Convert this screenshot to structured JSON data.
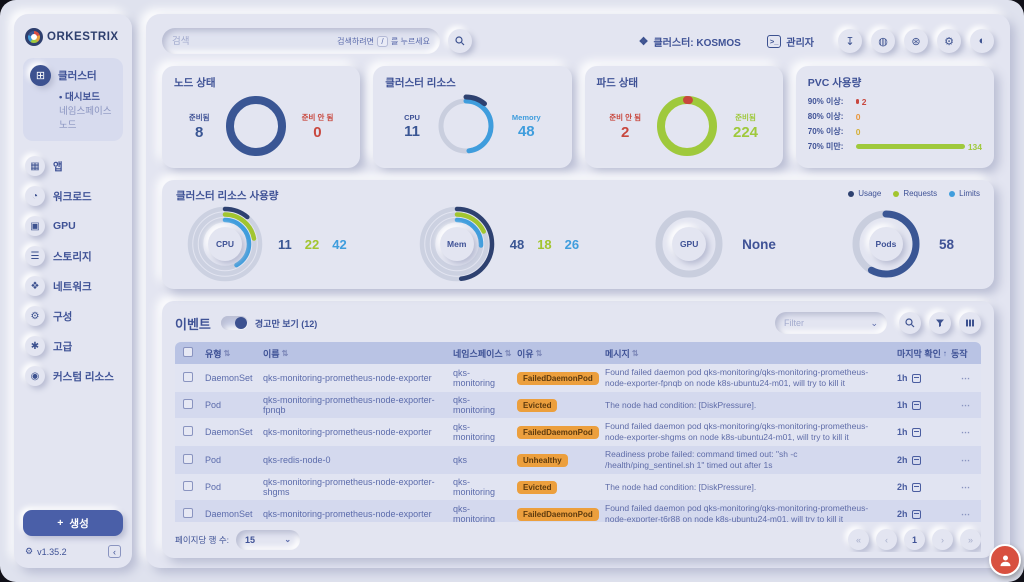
{
  "colors": {
    "primary": "#3f5296",
    "navy": "#2e4170",
    "blue": "#3f9ddd",
    "green": "#a2c52f",
    "orange": "#ec9f3d",
    "red": "#c8473e",
    "yellow": "#d4af37"
  },
  "icons": {
    "version_gear": "⚙",
    "collapse": "‹",
    "terminal": ">_",
    "cluster_chip": "❖",
    "plus": "+",
    "dots": "⋯",
    "chevron_down": "⌄",
    "sort_both": "⇅",
    "sort_asc": "↑"
  },
  "sidebar": {
    "logo": "ORKESTRIX",
    "cluster_group": {
      "label": "클러스터",
      "glyph": "⊞",
      "children": [
        {
          "label": "대시보드",
          "active": true
        },
        {
          "label": "네임스페이스",
          "active": false
        },
        {
          "label": "노드",
          "active": false
        }
      ]
    },
    "items": [
      {
        "id": "apps",
        "label": "앱",
        "glyph": "▦"
      },
      {
        "id": "workloads",
        "label": "워크로드",
        "glyph": "◔"
      },
      {
        "id": "gpu",
        "label": "GPU",
        "glyph": "▣"
      },
      {
        "id": "storage",
        "label": "스토리지",
        "glyph": "☰"
      },
      {
        "id": "network",
        "label": "네트워크",
        "glyph": "❖"
      },
      {
        "id": "config",
        "label": "구성",
        "glyph": "⚙"
      },
      {
        "id": "advanced",
        "label": "고급",
        "glyph": "✱"
      },
      {
        "id": "custom-resources",
        "label": "커스텀 리소스",
        "glyph": "◉"
      }
    ],
    "create_label": "생성",
    "version": "v1.35.2"
  },
  "topbar": {
    "search_placeholder": "검색",
    "search_hint_prefix": "검색하려면",
    "search_hint_key": "/",
    "search_hint_suffix": "를 누르세요",
    "cluster_label": "클러스터: KOSMOS",
    "admin_label": "관리자",
    "buttons": [
      {
        "name": "download",
        "glyph": "↧"
      },
      {
        "name": "help",
        "glyph": "◍"
      },
      {
        "name": "language",
        "glyph": "⊛"
      },
      {
        "name": "settings",
        "glyph": "⚙"
      },
      {
        "name": "theme",
        "glyph": "◐"
      }
    ]
  },
  "cards": {
    "node_status": {
      "title": "노드 상태",
      "ready_label": "준비됨",
      "ready_value": "8",
      "not_ready_label": "준비 안 됨",
      "not_ready_value": "0"
    },
    "cluster_resources": {
      "title": "클러스터 리소스",
      "cpu_label": "CPU",
      "cpu_value": "11",
      "memory_label": "Memory",
      "memory_value": "48"
    },
    "pod_status": {
      "title": "파드 상태",
      "not_ready_label": "준비 안 됨",
      "not_ready_value": "2",
      "ready_label": "준비됨",
      "ready_value": "224"
    },
    "pvc": {
      "title": "PVC 사용량",
      "rows": [
        {
          "label": "90% 이상:",
          "value": "2",
          "color": "#c8473e",
          "bar_pct": 2
        },
        {
          "label": "80% 이상:",
          "value": "0",
          "color": "#e8963c",
          "bar_pct": 0
        },
        {
          "label": "70% 이상:",
          "value": "0",
          "color": "#d4af37",
          "bar_pct": 0
        },
        {
          "label": "70% 미만:",
          "value": "134",
          "color": "#9fc93c",
          "bar_pct": 100
        }
      ]
    }
  },
  "usage": {
    "title": "클러스터 리소스 사용량",
    "legend": [
      {
        "label": "Usage",
        "color": "#2e4170"
      },
      {
        "label": "Requests",
        "color": "#a2c52f"
      },
      {
        "label": "Limits",
        "color": "#3f9ddd"
      }
    ],
    "cpu": {
      "label": "CPU",
      "usage": "11",
      "requests": "22",
      "limits": "42"
    },
    "mem": {
      "label": "Mem",
      "usage": "48",
      "requests": "18",
      "limits": "26"
    },
    "gpu": {
      "label": "GPU",
      "value": "None"
    },
    "pods": {
      "label": "Pods",
      "value": "58"
    }
  },
  "gauges": {
    "node": {
      "size": 66,
      "arcs": [
        {
          "r": 26,
          "w": 8,
          "color": "#3a5694",
          "pct": 100
        }
      ]
    },
    "cluster": {
      "size": 66,
      "arcs": [
        {
          "r": 25,
          "w": 5,
          "color": "#c9cede",
          "pct": 100
        },
        {
          "r": 25,
          "w": 5,
          "color": "#3f9ddd",
          "pct": 48
        },
        {
          "r": 29,
          "w": 5,
          "color": "#2e4170",
          "pct": 11
        }
      ]
    },
    "pod": {
      "size": 66,
      "arcs": [
        {
          "r": 26,
          "w": 8,
          "color": "#9fc93c",
          "pct": 100
        },
        {
          "r": 26,
          "w": 8,
          "color": "#c8473e",
          "pct": 1.2
        }
      ]
    },
    "cpu": {
      "size": 78,
      "arcs": [
        {
          "r": 35,
          "w": 4.5,
          "color": "#ccd1e1",
          "pct": 100
        },
        {
          "r": 35,
          "w": 4.5,
          "color": "#2e4170",
          "pct": 11
        },
        {
          "r": 29.5,
          "w": 4.5,
          "color": "#ccd1e1",
          "pct": 100
        },
        {
          "r": 29.5,
          "w": 4.5,
          "color": "#a2c52f",
          "pct": 22
        },
        {
          "r": 24,
          "w": 4.5,
          "color": "#ccd1e1",
          "pct": 100
        },
        {
          "r": 24,
          "w": 4.5,
          "color": "#3f9ddd",
          "pct": 42
        }
      ]
    },
    "mem": {
      "size": 78,
      "arcs": [
        {
          "r": 35,
          "w": 4.5,
          "color": "#ccd1e1",
          "pct": 100
        },
        {
          "r": 35,
          "w": 4.5,
          "color": "#2e4170",
          "pct": 48
        },
        {
          "r": 29.5,
          "w": 4.5,
          "color": "#ccd1e1",
          "pct": 100
        },
        {
          "r": 29.5,
          "w": 4.5,
          "color": "#a2c52f",
          "pct": 18
        },
        {
          "r": 24,
          "w": 4.5,
          "color": "#ccd1e1",
          "pct": 100
        },
        {
          "r": 24,
          "w": 4.5,
          "color": "#3f9ddd",
          "pct": 26
        }
      ]
    },
    "gpu": {
      "size": 78,
      "arcs": [
        {
          "r": 30,
          "w": 7,
          "color": "#c9cede",
          "pct": 100
        }
      ]
    },
    "pods": {
      "size": 78,
      "arcs": [
        {
          "r": 30,
          "w": 7,
          "color": "#c9cede",
          "pct": 100
        },
        {
          "r": 30,
          "w": 7,
          "color": "#3a5694",
          "pct": 58
        }
      ]
    }
  },
  "events": {
    "title": "이벤트",
    "toggle_label": "경고만 보기 (12)",
    "filter_placeholder": "Filter",
    "columns": [
      {
        "id": "type",
        "label": "유형",
        "sort": "both"
      },
      {
        "id": "name",
        "label": "이름",
        "sort": "both"
      },
      {
        "id": "namespace",
        "label": "네임스페이스",
        "sort": "both"
      },
      {
        "id": "reason",
        "label": "이유",
        "sort": "both"
      },
      {
        "id": "message",
        "label": "메시지",
        "sort": "both"
      },
      {
        "id": "last-seen",
        "label": "마지막 확인",
        "sort": "asc"
      },
      {
        "id": "actions",
        "label": "동작",
        "sort": null
      }
    ],
    "rows": [
      {
        "type": "DaemonSet",
        "name": "qks-monitoring-prometheus-node-exporter",
        "namespace": "qks-monitoring",
        "reason": "FailedDaemonPod",
        "message": "Found failed daemon pod qks-monitoring/qks-monitoring-prometheus-node-exporter-fpnqb on node k8s-ubuntu24-m01, will try to kill it",
        "last_seen": "1h"
      },
      {
        "type": "Pod",
        "name": "qks-monitoring-prometheus-node-exporter-fpnqb",
        "namespace": "qks-monitoring",
        "reason": "Evicted",
        "message": "The node had condition: [DiskPressure].",
        "last_seen": "1h"
      },
      {
        "type": "DaemonSet",
        "name": "qks-monitoring-prometheus-node-exporter",
        "namespace": "qks-monitoring",
        "reason": "FailedDaemonPod",
        "message": "Found failed daemon pod qks-monitoring/qks-monitoring-prometheus-node-exporter-shgms on node k8s-ubuntu24-m01, will try to kill it",
        "last_seen": "1h"
      },
      {
        "type": "Pod",
        "name": "qks-redis-node-0",
        "namespace": "qks",
        "reason": "Unhealthy",
        "message": "Readiness probe failed: command timed out: \"sh -c /health/ping_sentinel.sh 1\" timed out after 1s",
        "last_seen": "2h"
      },
      {
        "type": "Pod",
        "name": "qks-monitoring-prometheus-node-exporter-shgms",
        "namespace": "qks-monitoring",
        "reason": "Evicted",
        "message": "The node had condition: [DiskPressure].",
        "last_seen": "2h"
      },
      {
        "type": "DaemonSet",
        "name": "qks-monitoring-prometheus-node-exporter",
        "namespace": "qks-monitoring",
        "reason": "FailedDaemonPod",
        "message": "Found failed daemon pod qks-monitoring/qks-monitoring-prometheus-node-exporter-t6r88 on node k8s-ubuntu24-m01, will try to kill it",
        "last_seen": "2h"
      },
      {
        "type": "",
        "name": "",
        "namespace": "",
        "reason": "",
        "message": "",
        "last_seen": "",
        "partial": true
      }
    ],
    "rows_per_page_label": "페이지당 행 수:",
    "rows_per_page_value": "15",
    "pagination": {
      "first": "«",
      "prev": "‹",
      "page": "1",
      "next": "›",
      "last": "»"
    }
  }
}
